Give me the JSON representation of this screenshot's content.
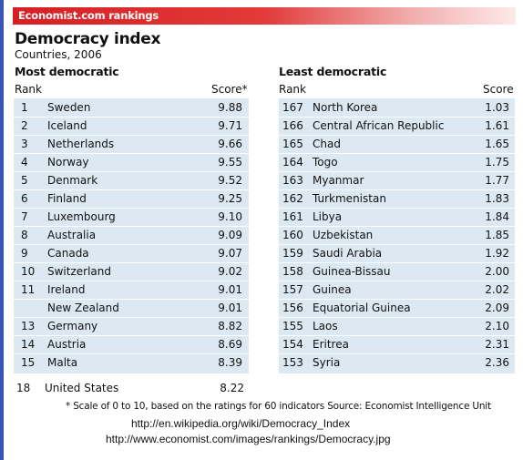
{
  "banner": "Economist.com rankings",
  "header": {
    "title": "Democracy index",
    "subtitle": "Countries, 2006"
  },
  "left_panel": {
    "heading": "Most democratic",
    "rank_label": "Rank",
    "score_label": "Score*"
  },
  "right_panel": {
    "heading": "Least democratic",
    "rank_label": "Rank",
    "score_label": "Score"
  },
  "footnote": "* Scale of 0 to 10, based on the ratings for 60 indicators    Source: Economist Intelligence Unit",
  "urls": [
    "http://en.wikipedia.org/wiki/Democracy_Index",
    "http://www.economist.com/images/rankings/Democracy.jpg"
  ],
  "colors": {
    "banner_red": "#d71f24",
    "table_bg": "#dce9f2",
    "left_rail": "#3a55b8"
  },
  "chart_data": [
    {
      "type": "table",
      "title": "Most democratic",
      "columns": [
        "Rank",
        "",
        "Score*"
      ],
      "rows": [
        {
          "rank": "1",
          "country": "Sweden",
          "score": "9.88"
        },
        {
          "rank": "2",
          "country": "Iceland",
          "score": "9.71"
        },
        {
          "rank": "3",
          "country": "Netherlands",
          "score": "9.66"
        },
        {
          "rank": "4",
          "country": "Norway",
          "score": "9.55"
        },
        {
          "rank": "5",
          "country": "Denmark",
          "score": "9.52"
        },
        {
          "rank": "6",
          "country": "Finland",
          "score": "9.25"
        },
        {
          "rank": "7",
          "country": "Luxembourg",
          "score": "9.10"
        },
        {
          "rank": "8",
          "country": "Australia",
          "score": "9.09"
        },
        {
          "rank": "9",
          "country": "Canada",
          "score": "9.07"
        },
        {
          "rank": "10",
          "country": "Switzerland",
          "score": "9.02"
        },
        {
          "rank": "11",
          "country": "Ireland",
          "score": "9.01"
        },
        {
          "rank": "",
          "country": "New Zealand",
          "score": "9.01"
        },
        {
          "rank": "13",
          "country": "Germany",
          "score": "8.82"
        },
        {
          "rank": "14",
          "country": "Austria",
          "score": "8.69"
        },
        {
          "rank": "15",
          "country": "Malta",
          "score": "8.39"
        }
      ],
      "extra_row": {
        "rank": "18",
        "country": "United States",
        "score": "8.22"
      }
    },
    {
      "type": "table",
      "title": "Least democratic",
      "columns": [
        "Rank",
        "",
        "Score"
      ],
      "rows": [
        {
          "rank": "167",
          "country": "North Korea",
          "score": "1.03"
        },
        {
          "rank": "166",
          "country": "Central African Republic",
          "score": "1.61"
        },
        {
          "rank": "165",
          "country": "Chad",
          "score": "1.65"
        },
        {
          "rank": "164",
          "country": "Togo",
          "score": "1.75"
        },
        {
          "rank": "163",
          "country": "Myanmar",
          "score": "1.77"
        },
        {
          "rank": "162",
          "country": "Turkmenistan",
          "score": "1.83"
        },
        {
          "rank": "161",
          "country": "Libya",
          "score": "1.84"
        },
        {
          "rank": "160",
          "country": "Uzbekistan",
          "score": "1.85"
        },
        {
          "rank": "159",
          "country": "Saudi Arabia",
          "score": "1.92"
        },
        {
          "rank": "158",
          "country": "Guinea-Bissau",
          "score": "2.00"
        },
        {
          "rank": "157",
          "country": "Guinea",
          "score": "2.02"
        },
        {
          "rank": "156",
          "country": "Equatorial Guinea",
          "score": "2.09"
        },
        {
          "rank": "155",
          "country": "Laos",
          "score": "2.10"
        },
        {
          "rank": "154",
          "country": "Eritrea",
          "score": "2.31"
        },
        {
          "rank": "153",
          "country": "Syria",
          "score": "2.36"
        }
      ]
    }
  ]
}
